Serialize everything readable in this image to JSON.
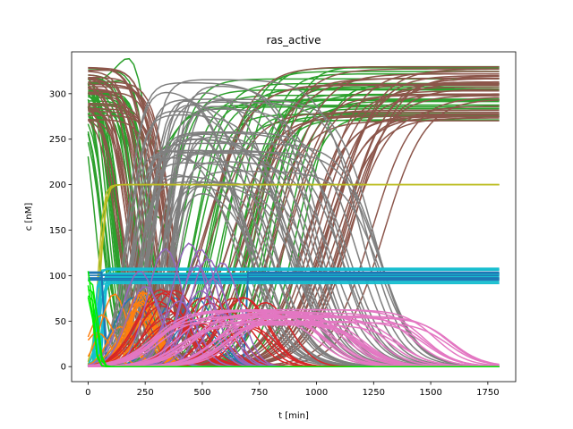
{
  "chart_data": {
    "type": "line",
    "title": "ras_active",
    "xlabel": "t [min]",
    "ylabel": "c [nM]",
    "xlim": [
      -72,
      1872
    ],
    "ylim": [
      -16.5,
      346
    ],
    "x_ticks": [
      0,
      250,
      500,
      750,
      1000,
      1250,
      1500,
      1750
    ],
    "y_ticks": [
      0,
      50,
      100,
      150,
      200,
      250,
      300
    ],
    "grid": false,
    "legend": "none",
    "series": [
      {
        "color": "#2ca02c",
        "band": [
          270,
          330
        ],
        "count": 44,
        "shape": "start high, drop to ~0 during 0–900 min, some rise back to 270–330 by 1800",
        "typical_values": [
          {
            "x": 0,
            "y": 300
          },
          {
            "x": 150,
            "y": 120
          },
          {
            "x": 300,
            "y": 40
          },
          {
            "x": 500,
            "y": 180
          },
          {
            "x": 800,
            "y": 290
          },
          {
            "x": 1800,
            "y": 300
          }
        ]
      },
      {
        "color": "#8c564b",
        "band": [
          270,
          330
        ],
        "count": 36,
        "shape": "start 270–330, drop to 0 then rise to 270–330 between 300 and 1450 min",
        "typical_values": [
          {
            "x": 0,
            "y": 320
          },
          {
            "x": 200,
            "y": 200
          },
          {
            "x": 400,
            "y": 20
          },
          {
            "x": 900,
            "y": 120
          },
          {
            "x": 1400,
            "y": 300
          },
          {
            "x": 1800,
            "y": 310
          }
        ]
      },
      {
        "color": "#7f7f7f",
        "band": [
          0,
          325
        ],
        "count": 42,
        "shape": "rise from 0 near 200–450 min to peak ~300, decline to 0 by 700–1450 min",
        "typical_values": [
          {
            "x": 100,
            "y": 0
          },
          {
            "x": 300,
            "y": 250
          },
          {
            "x": 450,
            "y": 310
          },
          {
            "x": 800,
            "y": 200
          },
          {
            "x": 1200,
            "y": 30
          },
          {
            "x": 1800,
            "y": 0
          }
        ]
      },
      {
        "color": "#bcbd22",
        "band": [
          0,
          200
        ],
        "count": 4,
        "shape": "rise from 0 to 200 by ~100 min, flat at 200 to 1800 min",
        "typical_values": [
          {
            "x": 0,
            "y": 0
          },
          {
            "x": 50,
            "y": 110
          },
          {
            "x": 100,
            "y": 198
          },
          {
            "x": 1800,
            "y": 200
          }
        ]
      },
      {
        "color": "#17becf",
        "band": [
          90,
          110
        ],
        "count": 22,
        "shape": "flat band between 90 and 110 from ~60 to 1800 min",
        "typical_values": [
          {
            "x": 0,
            "y": 0
          },
          {
            "x": 70,
            "y": 100
          },
          {
            "x": 1800,
            "y": 100
          }
        ]
      },
      {
        "color": "#1f77b4",
        "band": [
          0,
          105
        ],
        "count": 8,
        "shape": "near 100 flat to 1800 min with a few low humps before 700 min",
        "typical_values": [
          {
            "x": 0,
            "y": 100
          },
          {
            "x": 60,
            "y": 100
          },
          {
            "x": 1800,
            "y": 100
          }
        ]
      },
      {
        "color": "#ff7f0e",
        "band": [
          0,
          90
        ],
        "count": 18,
        "shape": "humps up to ~80 between 0 and 700 min, decays to 0",
        "typical_values": [
          {
            "x": 0,
            "y": 10
          },
          {
            "x": 100,
            "y": 70
          },
          {
            "x": 300,
            "y": 30
          },
          {
            "x": 600,
            "y": 0
          },
          {
            "x": 1800,
            "y": 0
          }
        ]
      },
      {
        "color": "#d62728",
        "band": [
          0,
          85
        ],
        "count": 22,
        "shape": "humps up to ~85 between 200 and 1100 min",
        "typical_values": [
          {
            "x": 150,
            "y": 0
          },
          {
            "x": 450,
            "y": 80
          },
          {
            "x": 700,
            "y": 60
          },
          {
            "x": 1000,
            "y": 10
          },
          {
            "x": 1800,
            "y": 0
          }
        ]
      },
      {
        "color": "#9467bd",
        "band": [
          0,
          140
        ],
        "count": 12,
        "shape": "humps up to ~140 between 100 and 800 min",
        "typical_values": [
          {
            "x": 100,
            "y": 0
          },
          {
            "x": 300,
            "y": 130
          },
          {
            "x": 500,
            "y": 60
          },
          {
            "x": 800,
            "y": 0
          },
          {
            "x": 1800,
            "y": 0
          }
        ]
      },
      {
        "color": "#e377c2",
        "band": [
          0,
          65
        ],
        "count": 26,
        "shape": "rise from 0 to ~60 around 400–1200 min, decline to 0 by 1400–1750 min",
        "typical_values": [
          {
            "x": 100,
            "y": 0
          },
          {
            "x": 600,
            "y": 55
          },
          {
            "x": 1100,
            "y": 62
          },
          {
            "x": 1450,
            "y": 20
          },
          {
            "x": 1700,
            "y": 0
          },
          {
            "x": 1800,
            "y": 0
          }
        ]
      },
      {
        "color": "#00ee00",
        "band": [
          0,
          110
        ],
        "count": 6,
        "shape": "spike near 100 at t≈0–60 min then flat at 0 to 1800 min",
        "typical_values": [
          {
            "x": 0,
            "y": 100
          },
          {
            "x": 30,
            "y": 60
          },
          {
            "x": 70,
            "y": 0
          },
          {
            "x": 1800,
            "y": 0
          }
        ]
      }
    ]
  }
}
